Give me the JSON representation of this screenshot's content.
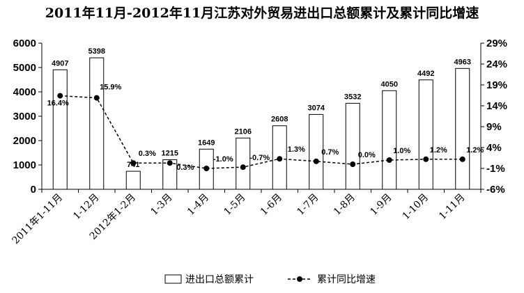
{
  "chart_data": {
    "type": "bar+line",
    "title": "2011年11月-2012年11月江苏对外贸易进出口总额累计及累计同比增速",
    "categories": [
      "2011年1-11月",
      "1-12月",
      "2012年1-2月",
      "1-3月",
      "1-4月",
      "1-5月",
      "1-6月",
      "1-7月",
      "1-8月",
      "1-9月",
      "1-10月",
      "1-11月"
    ],
    "left_axis": {
      "range": [
        0,
        6000
      ],
      "ticks": [
        "0",
        "1000",
        "2000",
        "3000",
        "4000",
        "5000",
        "6000"
      ]
    },
    "right_axis": {
      "range": [
        -6,
        29
      ],
      "ticks": [
        "-6%",
        "-1%",
        "4%",
        "9%",
        "14%",
        "19%",
        "24%",
        "29%"
      ]
    },
    "series": [
      {
        "name": "进出口总额累计",
        "type": "bar",
        "axis": "left",
        "values": [
          4907,
          5398,
          741,
          1215,
          1649,
          2106,
          2608,
          3074,
          3532,
          4050,
          4492,
          4963
        ],
        "labels": [
          "4907",
          "5398",
          "741",
          "1215",
          "1649",
          "2106",
          "2608",
          "3074",
          "3532",
          "4050",
          "4492",
          "4963"
        ]
      },
      {
        "name": "累计同比增速",
        "type": "line",
        "axis": "right",
        "style": "dashed-with-dots",
        "values": [
          16.4,
          15.9,
          0.3,
          0.3,
          -1.0,
          -0.7,
          1.3,
          0.7,
          0.0,
          1.0,
          1.2,
          1.2
        ],
        "labels": [
          "16.4%",
          "15.9%",
          "0.3%",
          "0.3%",
          "-1.0%",
          "-0.7%",
          "1.3%",
          "0.7%",
          "0.0%",
          "1.0%",
          "1.2%",
          "1.2%"
        ]
      }
    ],
    "legend": {
      "placement": "bottom-center"
    },
    "colors": {
      "bar_fill": "#ffffff",
      "stroke": "#000000"
    }
  }
}
